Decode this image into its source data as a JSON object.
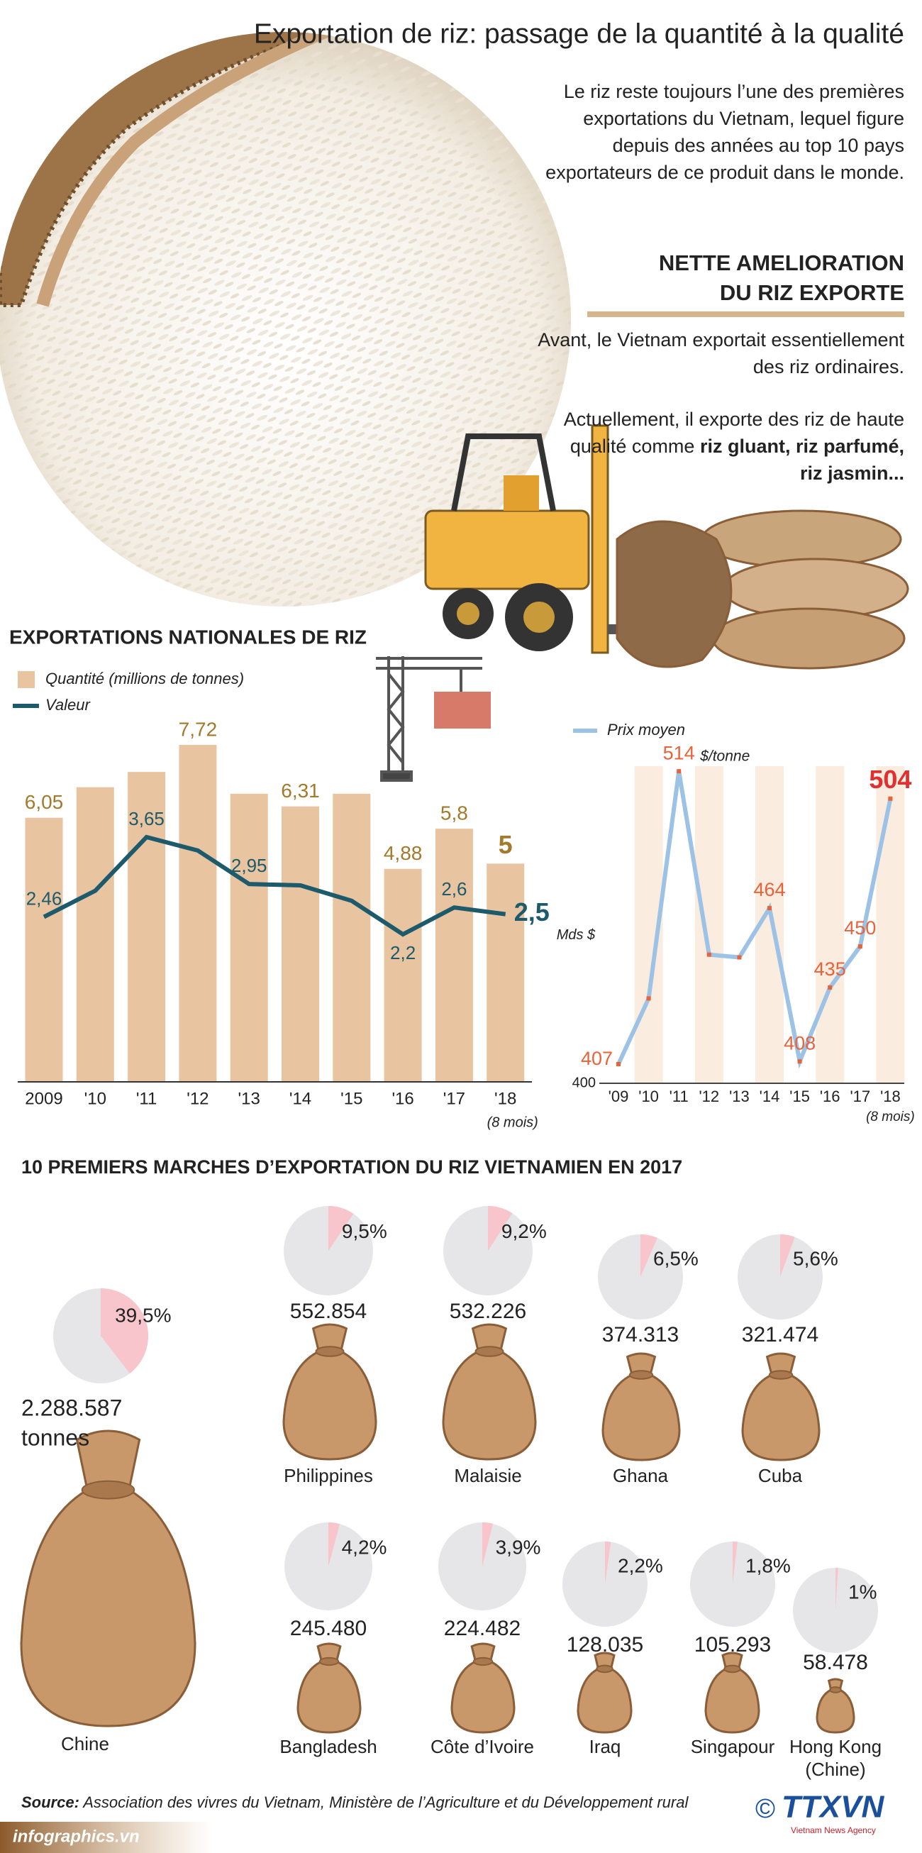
{
  "header": {
    "title": "Exportation de riz: passage de la quantité à la qualité",
    "intro": "Le riz reste toujours l’une des premières exportations du Vietnam, lequel figure depuis des années au top 10 pays exportateurs de ce produit dans le monde.",
    "section_title": [
      "NETTE AMELIORATION",
      "DU RIZ EXPORTE"
    ],
    "before": "Avant, le Vietnam exportait essentiellement des riz ordinaires.",
    "now": "Actuellement, il exporte des riz de haute qualité comme",
    "now_highlight": "riz gluant, riz parfumé, riz jasmin..."
  },
  "chart_data": [
    {
      "type": "bar",
      "title": "EXPORTATIONS NATIONALES DE RIZ",
      "categories": [
        "2009",
        "'10",
        "'11",
        "'12",
        "'13",
        "'14",
        "'15",
        "'16",
        "'17",
        "'18"
      ],
      "category_note": "(8 mois)",
      "series": [
        {
          "name": "Quantité (millions de tonnes)",
          "color": "#e8c4a0",
          "values": [
            6.05,
            6.75,
            7.1,
            7.72,
            6.6,
            6.31,
            6.6,
            4.88,
            5.8,
            5
          ],
          "value_labels": [
            "6,05",
            null,
            null,
            "7,72",
            null,
            "6,31",
            null,
            "4,88",
            "5,8",
            "5"
          ],
          "label_color": "#a37a2c"
        },
        {
          "name": "Valeur",
          "type": "line",
          "color": "#1d5a6b",
          "values": [
            2.46,
            2.85,
            3.65,
            3.45,
            2.95,
            2.93,
            2.7,
            2.2,
            2.6,
            2.5
          ],
          "value_labels": [
            "2,46",
            null,
            "3,65",
            null,
            "2,95",
            null,
            null,
            "2,2",
            "2,6",
            "2,5"
          ],
          "unit": "Mds $"
        }
      ]
    },
    {
      "type": "line",
      "categories": [
        "'09",
        "'10",
        "'11",
        "'12",
        "'13",
        "'14",
        "'15",
        "'16",
        "'17",
        "'18"
      ],
      "category_note": "(8 mois)",
      "series": [
        {
          "name": "Prix moyen",
          "color": "#9cc3e6",
          "values": [
            407,
            431,
            514,
            447,
            446,
            464,
            408,
            435,
            450,
            504
          ],
          "value_labels": [
            "407",
            null,
            "514",
            null,
            null,
            "464",
            "408",
            "435",
            "450",
            "504"
          ]
        }
      ],
      "unit": "$/tonne",
      "ylim": [
        400,
        520
      ],
      "yticks": [
        400
      ],
      "point_color": "#e8633a",
      "label_color": "#e8633a",
      "highlight_color": "#e03030"
    },
    {
      "type": "pie-grid",
      "title": "10 PREMIERS MARCHES D’EXPORTATION DU RIZ VIETNAMIEN EN 2017",
      "categories": [
        "Chine",
        "Philippines",
        "Malaisie",
        "Ghana",
        "Cuba",
        "Bangladesh",
        "Côte d’Ivoire",
        "Iraq",
        "Singapour",
        "Hong Kong (Chine)"
      ],
      "values": [
        2288587,
        552854,
        532226,
        374313,
        321474,
        245480,
        224482,
        128035,
        105293,
        58478
      ],
      "value_labels": [
        "2.288.587",
        "552.854",
        "532.226",
        "374.313",
        "321.474",
        "245.480",
        "224.482",
        "128.035",
        "105.293",
        "58.478"
      ],
      "unit": "tonnes",
      "shares": [
        39.5,
        9.5,
        9.2,
        6.5,
        5.6,
        4.2,
        3.9,
        2.2,
        1.8,
        1
      ],
      "share_labels": [
        "39,5%",
        "9,5%",
        "9,2%",
        "6,5%",
        "5,6%",
        "4,2%",
        "3,9%",
        "2,2%",
        "1,8%",
        "1%"
      ],
      "colors": [
        "#e6e6e8",
        "#f7c5cb"
      ]
    }
  ],
  "footer": {
    "source_label": "Source:",
    "source": "Association des vivres du Vietnam, Ministère de l’Agriculture et du Développement rural",
    "copyright": "©",
    "logo": "TTXVN",
    "agency": "Vietnam News Agency",
    "site": "infographics.vn"
  }
}
